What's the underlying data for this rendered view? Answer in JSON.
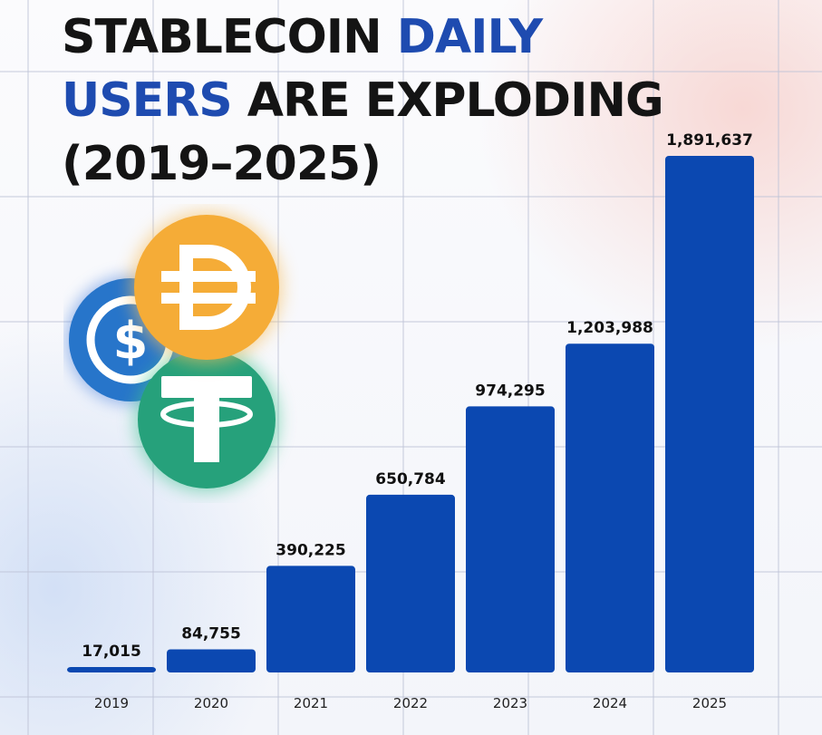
{
  "title": {
    "part1": "STABLECOIN ",
    "part2": "DAILY",
    "part3": "USERS",
    "part4": " ARE EXPLODING",
    "part5": "(2019–2025)"
  },
  "colors": {
    "bar": "#0b48b1",
    "accent": "#1e4bb0",
    "usdc": "#2775ca",
    "dai": "#f5ac37",
    "usdt": "#26a17b"
  },
  "icons": [
    "usdc-coin-icon",
    "dai-coin-icon",
    "usdt-coin-icon"
  ],
  "chart_data": {
    "type": "bar",
    "title": "STABLECOIN DAILY USERS ARE EXPLODING (2019–2025)",
    "categories": [
      "2019",
      "2020",
      "2021",
      "2022",
      "2023",
      "2024",
      "2025"
    ],
    "values": [
      17015,
      84755,
      390225,
      650784,
      974295,
      1203988,
      1891637
    ],
    "value_labels": [
      "17,015",
      "84,755",
      "390,225",
      "650,784",
      "974,295",
      "1,203,988",
      "1,891,637"
    ],
    "xlabel": "",
    "ylabel": "",
    "ylim": [
      0,
      1891637
    ],
    "grid": true
  }
}
